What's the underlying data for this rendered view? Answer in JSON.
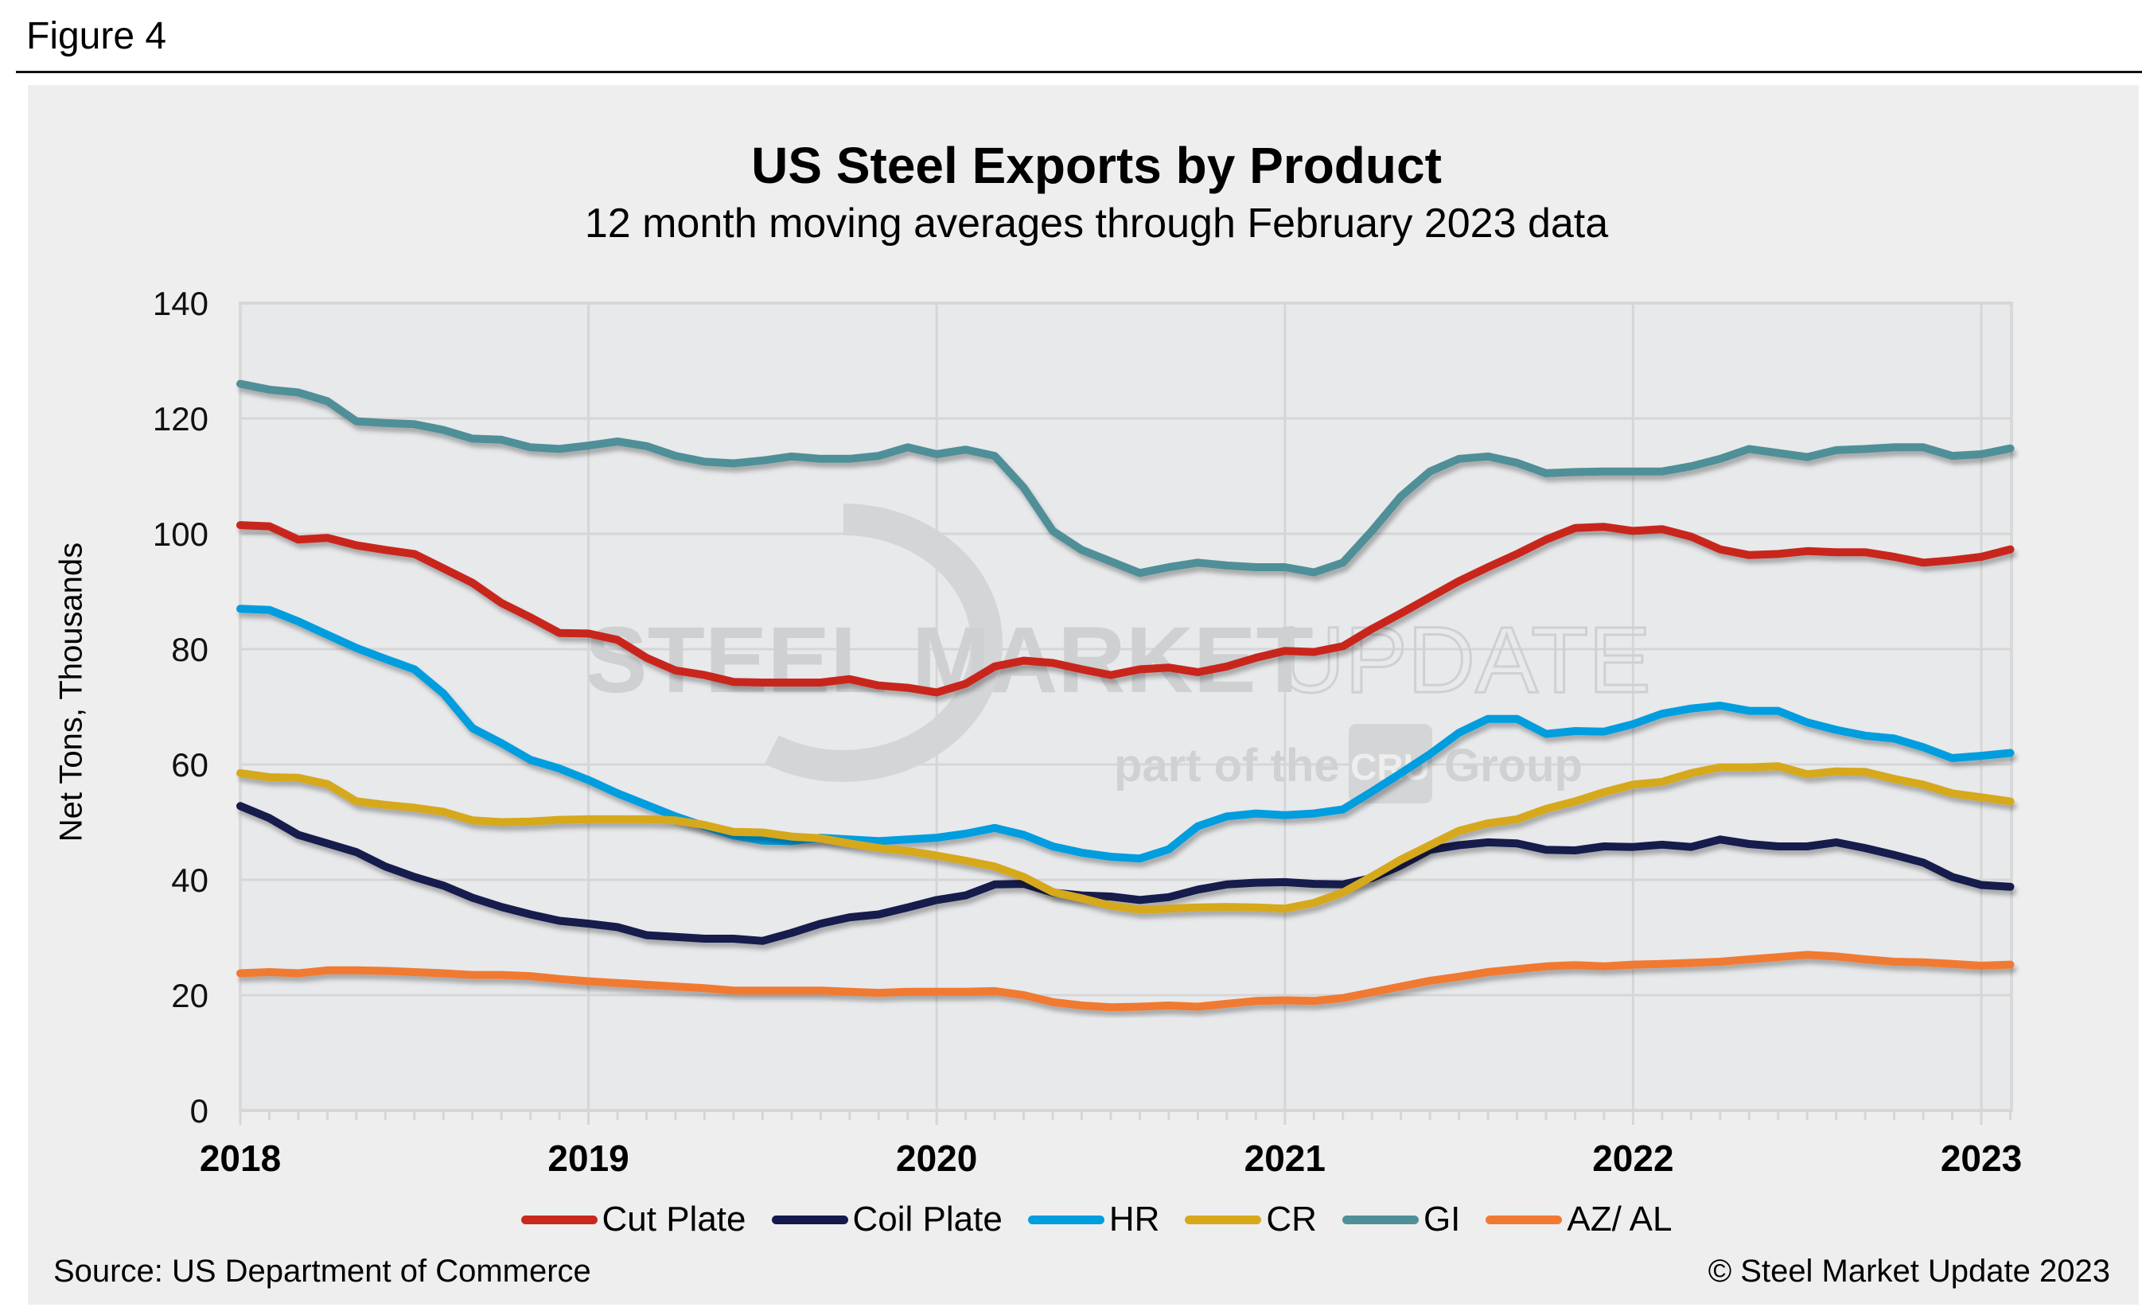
{
  "figure_label": "Figure 4",
  "source": "Source: US Department of Commerce",
  "copyright": "© Steel Market Update 2023",
  "watermark": {
    "brand_bold": "STEEL MARKET",
    "brand_light": "UPDATE",
    "tagline_pre": "part of the",
    "tagline_logo": "CRU",
    "tagline_post": "Group"
  },
  "chart_data": {
    "type": "line",
    "title": "US Steel Exports by Product",
    "subtitle": "12 month moving averages through February 2023 data",
    "xlabel": "",
    "ylabel": "Net Tons, Thousands",
    "ylim": [
      0,
      140
    ],
    "yticks": [
      0,
      20,
      40,
      60,
      80,
      100,
      120,
      140
    ],
    "xticks": [
      "2018",
      "2019",
      "2020",
      "2021",
      "2022",
      "2023"
    ],
    "x_start": "2018-01",
    "x_end": "2023-02",
    "x_frequency": "monthly",
    "grid": true,
    "legend_position": "bottom",
    "series": [
      {
        "name": "Cut Plate",
        "color": "#c8281e",
        "values": [
          101.5,
          101.3,
          99.0,
          99.3,
          98.0,
          97.2,
          96.5,
          94.0,
          91.5,
          88.0,
          85.5,
          82.8,
          82.7,
          81.6,
          78.5,
          76.3,
          75.5,
          74.3,
          74.2,
          74.2,
          74.2,
          74.8,
          73.7,
          73.3,
          72.5,
          74.0,
          77.0,
          78.0,
          77.6,
          76.5,
          75.5,
          76.5,
          76.8,
          76.0,
          77.0,
          78.5,
          79.7,
          79.5,
          80.5,
          83.5,
          86.2,
          89.0,
          91.8,
          94.2,
          96.5,
          99.0,
          101.0,
          101.2,
          100.5,
          100.8,
          99.5,
          97.3,
          96.3,
          96.5,
          97.0,
          96.8,
          96.8,
          96.0,
          95.0,
          95.4,
          96.0,
          97.3
        ]
      },
      {
        "name": "Coil Plate",
        "color": "#141a4c",
        "values": [
          52.8,
          50.7,
          47.8,
          46.3,
          44.8,
          42.3,
          40.5,
          39.0,
          36.9,
          35.3,
          34.0,
          32.9,
          32.4,
          31.8,
          30.4,
          30.1,
          29.8,
          29.8,
          29.4,
          30.8,
          32.4,
          33.5,
          34.0,
          35.2,
          36.5,
          37.3,
          39.2,
          39.3,
          37.8,
          37.3,
          37.1,
          36.5,
          37.0,
          38.3,
          39.2,
          39.5,
          39.6,
          39.3,
          39.2,
          40.3,
          42.5,
          45.2,
          46.0,
          46.5,
          46.3,
          45.2,
          45.1,
          45.8,
          45.7,
          46.1,
          45.7,
          47.0,
          46.2,
          45.8,
          45.8,
          46.5,
          45.5,
          44.3,
          43.0,
          40.5,
          39.1,
          38.8
        ]
      },
      {
        "name": "HR",
        "color": "#009ddf",
        "values": [
          87.0,
          86.8,
          84.8,
          82.5,
          80.2,
          78.3,
          76.5,
          72.3,
          66.3,
          63.7,
          60.8,
          59.3,
          57.3,
          55.0,
          53.0,
          51.0,
          49.3,
          47.7,
          46.8,
          46.7,
          47.3,
          47.0,
          46.7,
          47.0,
          47.3,
          48.0,
          49.0,
          47.8,
          45.8,
          44.7,
          44.0,
          43.7,
          45.3,
          49.3,
          51.0,
          51.5,
          51.2,
          51.5,
          52.2,
          55.3,
          58.5,
          61.8,
          65.5,
          67.9,
          67.9,
          65.3,
          65.8,
          65.7,
          67.0,
          68.8,
          69.7,
          70.2,
          69.3,
          69.3,
          67.3,
          66.0,
          65.0,
          64.5,
          63.0,
          61.1,
          61.5,
          62.0
        ]
      },
      {
        "name": "CR",
        "color": "#d6a81a",
        "values": [
          58.5,
          57.8,
          57.7,
          56.6,
          53.6,
          53.0,
          52.5,
          51.8,
          50.3,
          50.0,
          50.1,
          50.4,
          50.5,
          50.5,
          50.5,
          50.3,
          49.5,
          48.3,
          48.2,
          47.5,
          47.2,
          46.3,
          45.5,
          45.0,
          44.2,
          43.3,
          42.3,
          40.5,
          37.9,
          36.8,
          35.5,
          34.8,
          35.0,
          35.2,
          35.3,
          35.2,
          35.0,
          36.0,
          37.8,
          40.6,
          43.5,
          46.0,
          48.5,
          49.8,
          50.5,
          52.3,
          53.6,
          55.2,
          56.5,
          57.0,
          58.5,
          59.5,
          59.5,
          59.7,
          58.3,
          58.8,
          58.7,
          57.5,
          56.5,
          55.0,
          54.3,
          53.6
        ]
      },
      {
        "name": "GI",
        "color": "#4f8f98",
        "values": [
          126.0,
          125.0,
          124.5,
          123.0,
          119.5,
          119.2,
          119.0,
          118.0,
          116.5,
          116.3,
          115.0,
          114.7,
          115.3,
          116.0,
          115.2,
          113.5,
          112.5,
          112.2,
          112.7,
          113.4,
          113.0,
          113.0,
          113.5,
          115.0,
          113.8,
          114.6,
          113.5,
          108.0,
          100.5,
          97.2,
          95.2,
          93.2,
          94.2,
          95.0,
          94.5,
          94.2,
          94.2,
          93.3,
          95.0,
          100.5,
          106.5,
          110.8,
          113.0,
          113.4,
          112.3,
          110.5,
          110.7,
          110.8,
          110.8,
          110.8,
          111.7,
          113.0,
          114.7,
          114.0,
          113.3,
          114.5,
          114.7,
          115.0,
          115.0,
          113.5,
          113.8,
          114.8
        ]
      },
      {
        "name": "AZ/ AL",
        "color": "#f07a32",
        "values": [
          23.8,
          24.0,
          23.8,
          24.3,
          24.3,
          24.2,
          24.0,
          23.8,
          23.5,
          23.5,
          23.3,
          22.8,
          22.4,
          22.1,
          21.8,
          21.5,
          21.2,
          20.8,
          20.8,
          20.8,
          20.8,
          20.6,
          20.4,
          20.6,
          20.6,
          20.6,
          20.7,
          20.0,
          18.8,
          18.2,
          17.9,
          18.0,
          18.2,
          18.0,
          18.5,
          19.0,
          19.1,
          19.0,
          19.5,
          20.5,
          21.5,
          22.5,
          23.2,
          24.0,
          24.5,
          25.0,
          25.2,
          25.0,
          25.3,
          25.4,
          25.6,
          25.8,
          26.2,
          26.6,
          27.0,
          26.7,
          26.2,
          25.8,
          25.7,
          25.4,
          25.1,
          25.3
        ]
      }
    ]
  }
}
